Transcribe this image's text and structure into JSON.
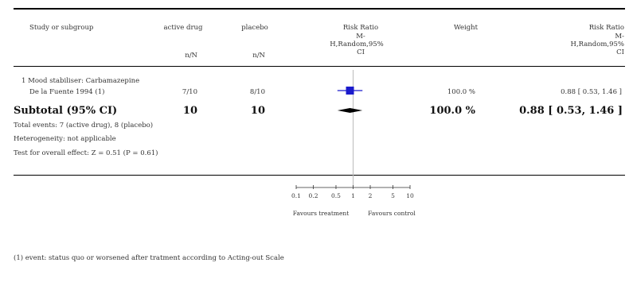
{
  "header": {
    "study_col": "Study or subgroup",
    "active_col": "active drug",
    "active_sub": "n/N",
    "placebo_col": "placebo",
    "placebo_sub": "n/N",
    "rr_col_line1": "Risk Ratio",
    "rr_col_line2": "M-",
    "rr_col_line3": "H,Random,95%",
    "rr_col_line4": "CI",
    "weight_col": "Weight",
    "rr2_col_line1": "Risk Ratio",
    "rr2_col_line2": "M-",
    "rr2_col_line3": "H,Random,95%",
    "rr2_col_line4": "CI"
  },
  "subgroup": {
    "title": "1 Mood stabiliser: Carbamazepine"
  },
  "studies": [
    {
      "name": "De la Fuente 1994 (1)",
      "active": "7/10",
      "placebo": "8/10",
      "weight": "100.0 %",
      "rr_text": "0.88 [ 0.53, 1.46 ]"
    }
  ],
  "subtotal": {
    "label": "Subtotal (95% CI)",
    "active": "10",
    "placebo": "10",
    "weight": "100.0 %",
    "rr_text": "0.88 [ 0.53, 1.46 ]"
  },
  "notes": {
    "total_events": "Total events: 7 (active drug), 8 (placebo)",
    "heterogeneity": "Heterogeneity: not applicable",
    "overall_effect": "Test for overall effect: Z = 0.51 (P = 0.61)"
  },
  "axis": {
    "ticks": [
      0.1,
      0.2,
      0.5,
      1,
      2,
      5,
      10
    ],
    "tick_labels": [
      "0.1",
      "0.2",
      "0.5",
      "1",
      "2",
      "5",
      "10"
    ],
    "favours_left": "Favours treatment",
    "favours_right": "Favours control"
  },
  "footnote": "(1) event: status quo or worsened after tratment according to Acting-out Scale",
  "chart_data": {
    "type": "forest",
    "scale": "log",
    "xlim": [
      0.1,
      10
    ],
    "reference_line": 1,
    "colors": {
      "study_marker": "#1a1acc",
      "diamond": "#000000",
      "ci_line": "#1a1acc"
    },
    "rows": [
      {
        "study": "De la Fuente 1994 (1)",
        "estimate": 0.88,
        "ci": [
          0.53,
          1.46
        ],
        "weight": 100.0,
        "kind": "study"
      },
      {
        "study": "Subtotal (95% CI)",
        "estimate": 0.88,
        "ci": [
          0.53,
          1.46
        ],
        "kind": "pooled"
      }
    ]
  }
}
